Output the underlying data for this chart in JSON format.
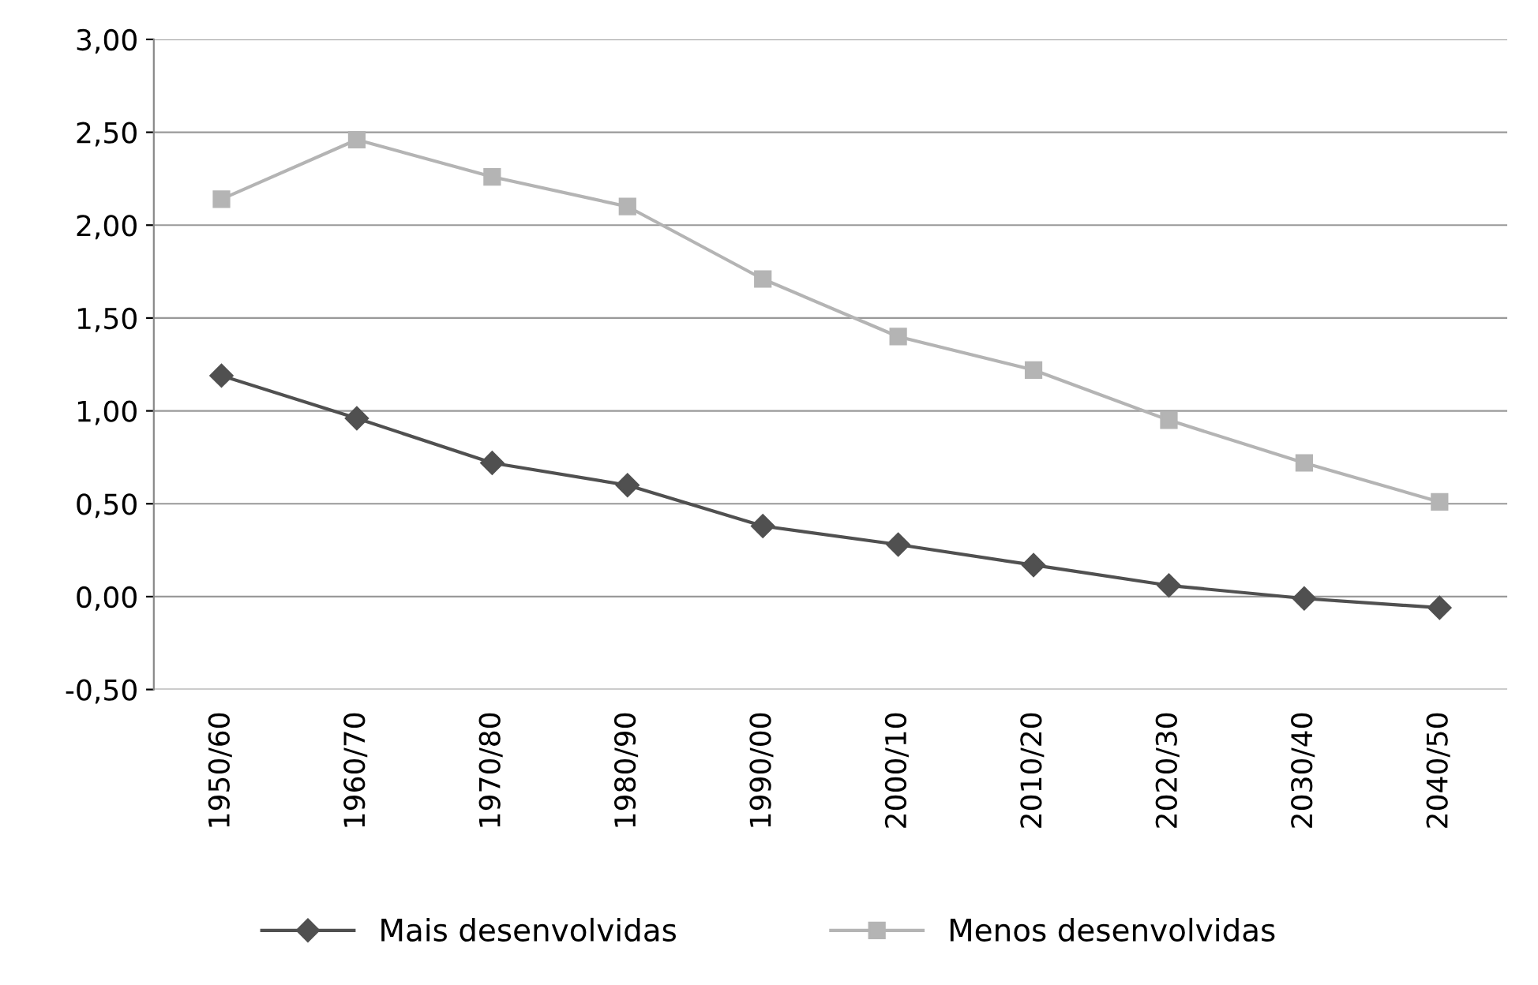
{
  "chart_data": {
    "type": "line",
    "categories": [
      "1950/60",
      "1960/70",
      "1970/80",
      "1980/90",
      "1990/00",
      "2000/10",
      "2010/20",
      "2020/30",
      "2030/40",
      "2040/50"
    ],
    "series": [
      {
        "name": "Mais desenvolvidas",
        "color": "#505050",
        "marker": "diamond",
        "values": [
          1.19,
          0.96,
          0.72,
          0.6,
          0.38,
          0.28,
          0.17,
          0.06,
          -0.01,
          -0.06
        ]
      },
      {
        "name": "Menos desenvolvidas",
        "color": "#b4b4b4",
        "marker": "square",
        "values": [
          2.14,
          2.46,
          2.26,
          2.1,
          1.71,
          1.4,
          1.22,
          0.95,
          0.72,
          0.51
        ]
      }
    ],
    "ylim": [
      -0.5,
      3.0
    ],
    "yticks": [
      {
        "value": -0.5,
        "label": "-0,50"
      },
      {
        "value": 0,
        "label": "0,00"
      },
      {
        "value": 0.5,
        "label": "0,50"
      },
      {
        "value": 1.0,
        "label": "1,00"
      },
      {
        "value": 1.5,
        "label": "1,50"
      },
      {
        "value": 2.0,
        "label": "2,00"
      },
      {
        "value": 2.5,
        "label": "2,50"
      },
      {
        "value": 3.0,
        "label": "3,00"
      }
    ],
    "grid": "y",
    "legend": "bottom",
    "line_style": "solid"
  }
}
